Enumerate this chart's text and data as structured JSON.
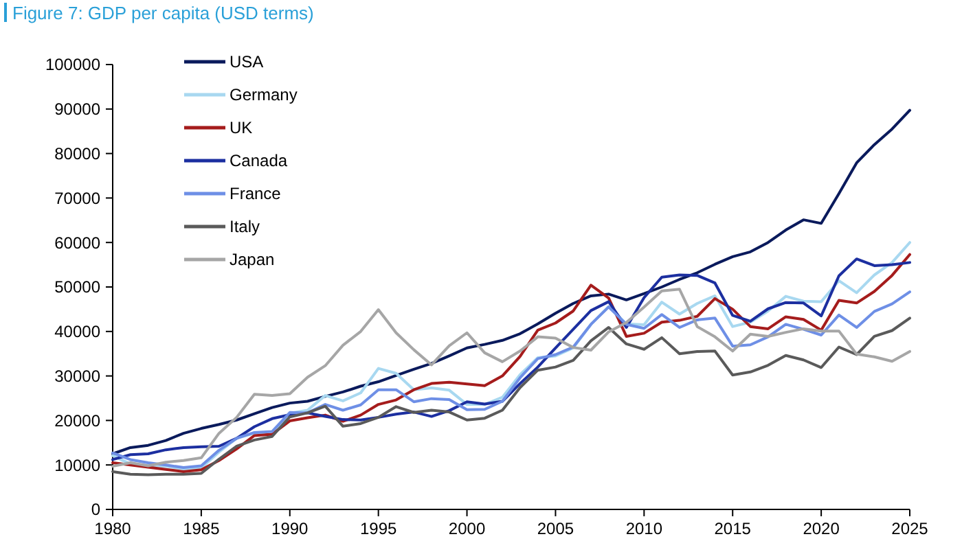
{
  "chart_data": {
    "type": "line",
    "title": "Figure 7: GDP per capita (USD terms)",
    "x": [
      1980,
      1981,
      1982,
      1983,
      1984,
      1985,
      1986,
      1987,
      1988,
      1989,
      1990,
      1991,
      1992,
      1993,
      1994,
      1995,
      1996,
      1997,
      1998,
      1999,
      2000,
      2001,
      2002,
      2003,
      2004,
      2005,
      2006,
      2007,
      2008,
      2009,
      2010,
      2011,
      2012,
      2013,
      2014,
      2015,
      2016,
      2017,
      2018,
      2019,
      2020,
      2021,
      2022,
      2023,
      2024,
      2025
    ],
    "xlim": [
      1980,
      2025
    ],
    "xticks": [
      1980,
      1985,
      1990,
      1995,
      2000,
      2005,
      2010,
      2015,
      2020,
      2025
    ],
    "ylim": [
      0,
      100000
    ],
    "yticks": [
      0,
      10000,
      20000,
      30000,
      40000,
      50000,
      60000,
      70000,
      80000,
      90000,
      100000
    ],
    "grid": false,
    "legend": "top left",
    "marker": "none",
    "line_style": "solid",
    "series": [
      {
        "name": "USA",
        "color": "#0a1a5c",
        "values": [
          12500,
          13900,
          14400,
          15500,
          17100,
          18200,
          19100,
          20100,
          21500,
          22900,
          23900,
          24300,
          25400,
          26400,
          27700,
          28700,
          30100,
          31500,
          32800,
          34500,
          36300,
          37100,
          38000,
          39500,
          41700,
          44100,
          46300,
          48000,
          48400,
          47100,
          48500,
          50000,
          51700,
          53200,
          55100,
          56800,
          57900,
          60000,
          62800,
          65100,
          64300,
          71000,
          77900,
          82000,
          85500,
          89700
        ]
      },
      {
        "name": "Germany",
        "color": "#a8d8f0",
        "values": [
          12100,
          10200,
          9900,
          9700,
          9100,
          9300,
          12900,
          16000,
          17100,
          16800,
          21600,
          22300,
          25600,
          24400,
          26200,
          31700,
          30600,
          26900,
          27300,
          26800,
          23600,
          23600,
          25200,
          30300,
          34100,
          34500,
          36300,
          41600,
          45600,
          41700,
          41500,
          46600,
          43900,
          46300,
          48000,
          41100,
          42100,
          44600,
          47900,
          46800,
          46700,
          51400,
          48700,
          52700,
          55500,
          60000
        ]
      },
      {
        "name": "UK",
        "color": "#a51c1c",
        "values": [
          10500,
          10000,
          9500,
          9000,
          8500,
          8900,
          11000,
          13600,
          16600,
          16900,
          19900,
          20600,
          21200,
          19800,
          21200,
          23600,
          24600,
          26900,
          28300,
          28600,
          28200,
          27800,
          30000,
          34400,
          40300,
          41900,
          44600,
          50400,
          47500,
          38900,
          39600,
          42100,
          42500,
          43400,
          47400,
          45000,
          41100,
          40600,
          43300,
          42700,
          40300,
          47000,
          46400,
          49000,
          52600,
          57300
        ]
      },
      {
        "name": "Canada",
        "color": "#1c2fa0",
        "values": [
          11200,
          12300,
          12500,
          13400,
          13900,
          14100,
          14200,
          16000,
          18600,
          20400,
          21300,
          21700,
          20900,
          20200,
          20100,
          20700,
          21400,
          21900,
          20900,
          22200,
          24200,
          23700,
          24300,
          28300,
          32000,
          36300,
          40500,
          44700,
          46700,
          40900,
          47600,
          52200,
          52700,
          52600,
          50900,
          43600,
          42300,
          45100,
          46500,
          46400,
          43500,
          52500,
          56300,
          54800,
          55000,
          55500
        ]
      },
      {
        "name": "France",
        "color": "#6e8fe6",
        "values": [
          12700,
          11200,
          10500,
          10000,
          9400,
          9800,
          13300,
          16000,
          17300,
          17500,
          21800,
          21700,
          23600,
          22300,
          23500,
          26900,
          26900,
          24200,
          24900,
          24700,
          22400,
          22500,
          24300,
          29600,
          33900,
          34800,
          36500,
          41600,
          45500,
          41600,
          40700,
          43800,
          40900,
          42600,
          43000,
          36700,
          37000,
          38800,
          41600,
          40500,
          39200,
          43700,
          40900,
          44500,
          46200,
          48900
        ]
      },
      {
        "name": "Italy",
        "color": "#5a5a5a",
        "values": [
          8500,
          7900,
          7800,
          7900,
          7900,
          8100,
          11300,
          14200,
          15600,
          16400,
          20800,
          21700,
          23200,
          18700,
          19300,
          20700,
          23100,
          21800,
          22300,
          21900,
          20100,
          20500,
          22300,
          27400,
          31300,
          32000,
          33500,
          37900,
          40900,
          37200,
          36000,
          38600,
          35000,
          35500,
          35600,
          30200,
          30900,
          32400,
          34600,
          33600,
          31900,
          36500,
          34800,
          38900,
          40200,
          43000
        ]
      },
      {
        "name": "Japan",
        "color": "#a6a6a6",
        "values": [
          9700,
          10500,
          9800,
          10600,
          11000,
          11600,
          17100,
          20700,
          25900,
          25600,
          26000,
          29700,
          32300,
          36900,
          40000,
          44900,
          39700,
          35900,
          32500,
          36800,
          39700,
          35200,
          33200,
          35600,
          38800,
          38500,
          36400,
          35800,
          39900,
          42000,
          45500,
          49100,
          49500,
          41100,
          38800,
          35600,
          39400,
          38900,
          39800,
          40600,
          40100,
          40100,
          34900,
          34300,
          33300,
          35500
        ]
      }
    ]
  }
}
